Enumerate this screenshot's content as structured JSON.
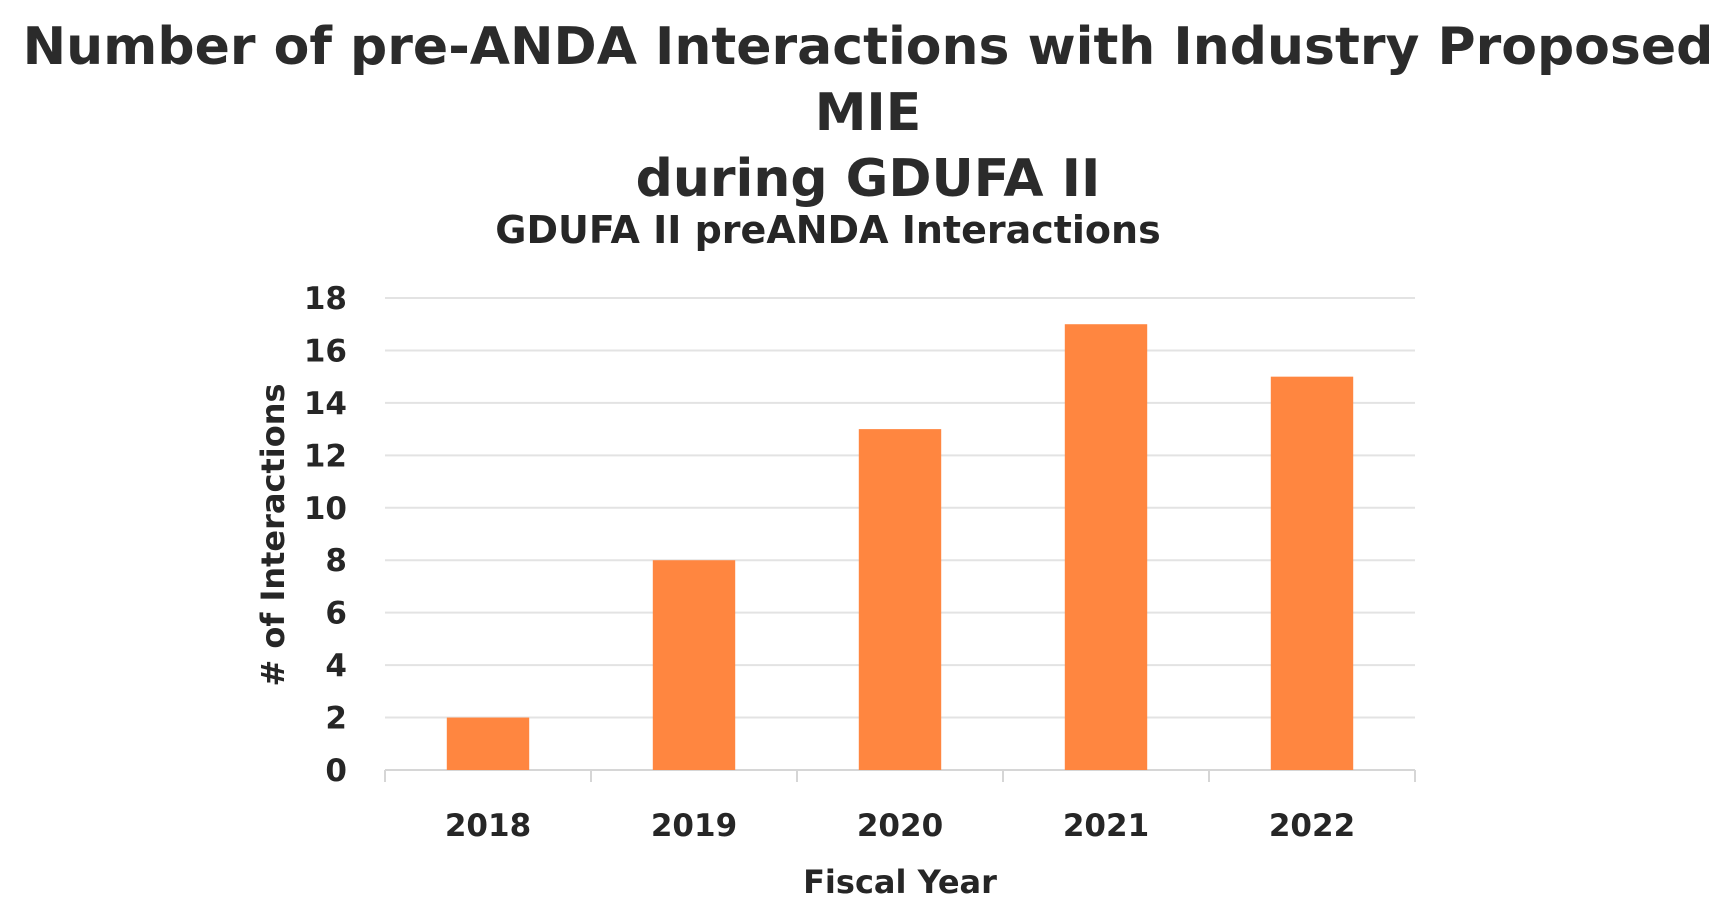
{
  "slide": {
    "title_line1": "Number of pre-ANDA Interactions with Industry Proposed MIE",
    "title_line2": "during GDUFA II"
  },
  "chart_data": {
    "type": "bar",
    "title": "GDUFA II preANDA Interactions",
    "xlabel": "Fiscal Year",
    "ylabel": "# of Interactions",
    "categories": [
      "2018",
      "2019",
      "2020",
      "2021",
      "2022"
    ],
    "values": [
      2,
      8,
      13,
      17,
      15
    ],
    "ylim": [
      0,
      18
    ],
    "yticks": [
      0,
      2,
      4,
      6,
      8,
      10,
      12,
      14,
      16,
      18
    ],
    "grid": true,
    "legend": "none",
    "bar_color": "#ff8640"
  }
}
